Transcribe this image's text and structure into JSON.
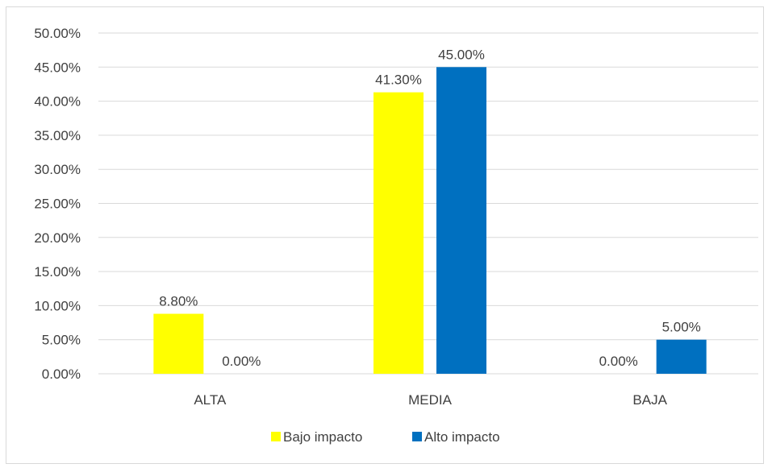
{
  "chart_data": {
    "type": "bar",
    "title": "",
    "xlabel": "",
    "ylabel": "",
    "categories": [
      "ALTA",
      "MEDIA",
      "BAJA"
    ],
    "series": [
      {
        "name": "Bajo impacto",
        "color": "#FFFF00",
        "values": [
          0.088,
          0.413,
          0.0
        ],
        "labels": [
          "8.80%",
          "41.30%",
          "0.00%"
        ]
      },
      {
        "name": "Alto impacto",
        "color": "#0070C0",
        "values": [
          0.0,
          0.45,
          0.05
        ],
        "labels": [
          "0.00%",
          "45.00%",
          "5.00%"
        ]
      }
    ],
    "ylim": [
      0,
      0.5
    ],
    "yticks": [
      0,
      0.05,
      0.1,
      0.15,
      0.2,
      0.25,
      0.3,
      0.35,
      0.4,
      0.45,
      0.5
    ],
    "ytick_labels": [
      "0.00%",
      "5.00%",
      "10.00%",
      "15.00%",
      "20.00%",
      "25.00%",
      "30.00%",
      "35.00%",
      "40.00%",
      "45.00%",
      "50.00%"
    ],
    "grid": true,
    "gridline_color": "#d9d9d9",
    "legend_position": "bottom"
  }
}
